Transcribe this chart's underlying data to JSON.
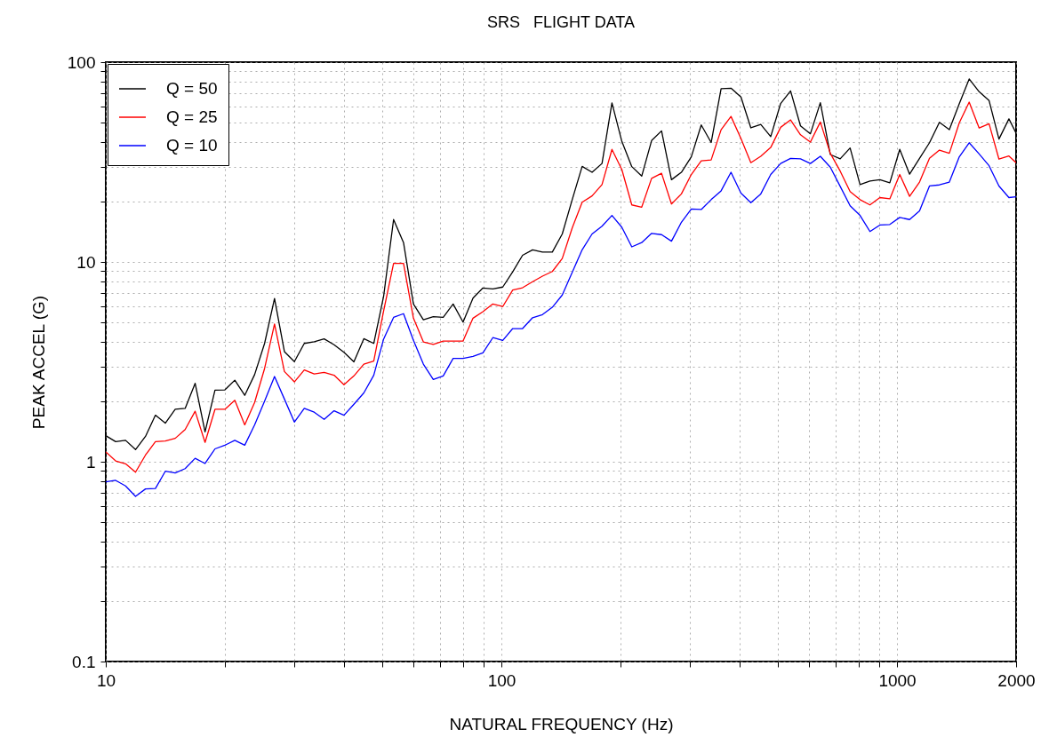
{
  "chart_data": {
    "type": "line",
    "title": "SRS   FLIGHT DATA",
    "xlabel": "NATURAL FREQUENCY (Hz)",
    "ylabel": "PEAK ACCEL (G)",
    "x": [
      10,
      10.59,
      11.22,
      11.89,
      12.6,
      13.35,
      14.14,
      14.98,
      15.87,
      16.82,
      17.82,
      18.88,
      20,
      21.19,
      22.45,
      23.78,
      25.2,
      26.7,
      28.28,
      29.97,
      31.75,
      33.64,
      35.64,
      37.76,
      40,
      42.38,
      44.9,
      47.57,
      50.4,
      53.39,
      56.57,
      59.93,
      63.5,
      67.27,
      71.27,
      75.51,
      80,
      84.76,
      89.8,
      95.14,
      100.8,
      106.8,
      113.1,
      119.9,
      127,
      134.5,
      142.5,
      151,
      160,
      169.5,
      179.6,
      190.3,
      201.6,
      213.6,
      226.3,
      239.7,
      254,
      269.1,
      285.1,
      302,
      320,
      339,
      359.2,
      380.5,
      403.2,
      427.1,
      452.5,
      479.5,
      508,
      538.2,
      570.2,
      604.1,
      640,
      678.1,
      718.4,
      761.1,
      806.3,
      854.3,
      905.1,
      958.9,
      1016,
      1076,
      1140,
      1208,
      1280,
      1356,
      1437,
      1522,
      1613,
      1709,
      1810,
      1918,
      2000
    ],
    "series": [
      {
        "name": "Q = 50",
        "color": "#000000",
        "values": [
          1.35,
          1.26,
          1.28,
          1.15,
          1.34,
          1.71,
          1.56,
          1.83,
          1.85,
          2.47,
          1.41,
          2.28,
          2.29,
          2.56,
          2.15,
          2.73,
          3.91,
          6.57,
          3.56,
          3.17,
          3.91,
          3.99,
          4.12,
          3.85,
          3.53,
          3.16,
          4.13,
          3.91,
          6.76,
          16.3,
          12.5,
          6.16,
          5.14,
          5.32,
          5.28,
          6.16,
          5.0,
          6.59,
          7.41,
          7.33,
          7.49,
          8.93,
          10.8,
          11.5,
          11.2,
          11.2,
          13.8,
          20.5,
          30.1,
          28.1,
          31.1,
          62.5,
          40.1,
          30.0,
          26.9,
          40.5,
          45.3,
          25.8,
          28.1,
          33.6,
          48.5,
          39.6,
          73.6,
          74.1,
          66.9,
          46.9,
          48.8,
          42.4,
          62.1,
          71.8,
          48.0,
          43.8,
          62.7,
          34.5,
          32.8,
          37.2,
          24.4,
          25.4,
          25.8,
          24.9,
          36.6,
          27.5,
          33.0,
          39.5,
          50.0,
          45.9,
          62.0,
          82.4,
          71.1,
          64.2,
          41.2,
          52.0,
          44.1
        ]
      },
      {
        "name": "Q = 25",
        "color": "#ff0000",
        "values": [
          1.12,
          1.01,
          0.977,
          0.887,
          1.08,
          1.26,
          1.27,
          1.31,
          1.45,
          1.79,
          1.25,
          1.83,
          1.83,
          2.03,
          1.53,
          1.98,
          2.93,
          4.89,
          2.83,
          2.51,
          2.88,
          2.75,
          2.8,
          2.71,
          2.43,
          2.69,
          3.08,
          3.19,
          5.7,
          9.83,
          9.83,
          5.23,
          3.98,
          3.87,
          4.02,
          4.02,
          4.02,
          5.23,
          5.64,
          6.16,
          5.98,
          7.23,
          7.43,
          7.96,
          8.49,
          8.96,
          10.4,
          14.8,
          19.9,
          21.4,
          24.4,
          36.6,
          29.0,
          19.3,
          18.8,
          26.2,
          27.8,
          19.5,
          21.9,
          27.4,
          32.1,
          32.4,
          45.9,
          53.5,
          41.5,
          31.4,
          33.8,
          37.4,
          47.2,
          51.4,
          43.3,
          39.8,
          50.2,
          35.0,
          28.5,
          22.5,
          20.5,
          19.3,
          21.0,
          20.7,
          27.4,
          21.3,
          25.1,
          33.0,
          36.3,
          35.0,
          49.7,
          63.1,
          46.8,
          49.2,
          32.7,
          33.9,
          31.4
        ]
      },
      {
        "name": "Q = 10",
        "color": "#0000ff",
        "values": [
          0.793,
          0.807,
          0.757,
          0.671,
          0.731,
          0.735,
          0.896,
          0.878,
          0.924,
          1.04,
          0.98,
          1.16,
          1.21,
          1.28,
          1.21,
          1.53,
          2.01,
          2.67,
          2.06,
          1.58,
          1.85,
          1.77,
          1.63,
          1.8,
          1.71,
          1.94,
          2.21,
          2.71,
          4.12,
          5.28,
          5.51,
          4.05,
          3.08,
          2.58,
          2.69,
          3.29,
          3.29,
          3.37,
          3.51,
          4.18,
          4.05,
          4.64,
          4.64,
          5.26,
          5.45,
          5.93,
          6.83,
          8.87,
          11.5,
          13.8,
          15.1,
          17.1,
          14.9,
          11.9,
          12.5,
          13.9,
          13.7,
          12.7,
          15.8,
          18.4,
          18.3,
          20.5,
          22.7,
          28.1,
          22.1,
          19.8,
          21.9,
          27.4,
          31.1,
          33.0,
          32.8,
          31.1,
          33.8,
          29.8,
          23.9,
          19.1,
          17.1,
          14.2,
          15.3,
          15.4,
          16.7,
          16.3,
          18.0,
          24.0,
          24.3,
          25.1,
          33.6,
          39.5,
          34.7,
          30.3,
          24.0,
          21.0,
          21.2
        ]
      }
    ],
    "xlim": [
      10,
      2000
    ],
    "xticks": [
      10,
      100,
      1000,
      2000
    ],
    "ylim": [
      0.1,
      100
    ],
    "yticks": [
      0.1,
      1,
      10,
      100
    ],
    "log": "xy",
    "grid": true,
    "legend": "top left",
    "line_style": "solid",
    "marker": "none"
  }
}
